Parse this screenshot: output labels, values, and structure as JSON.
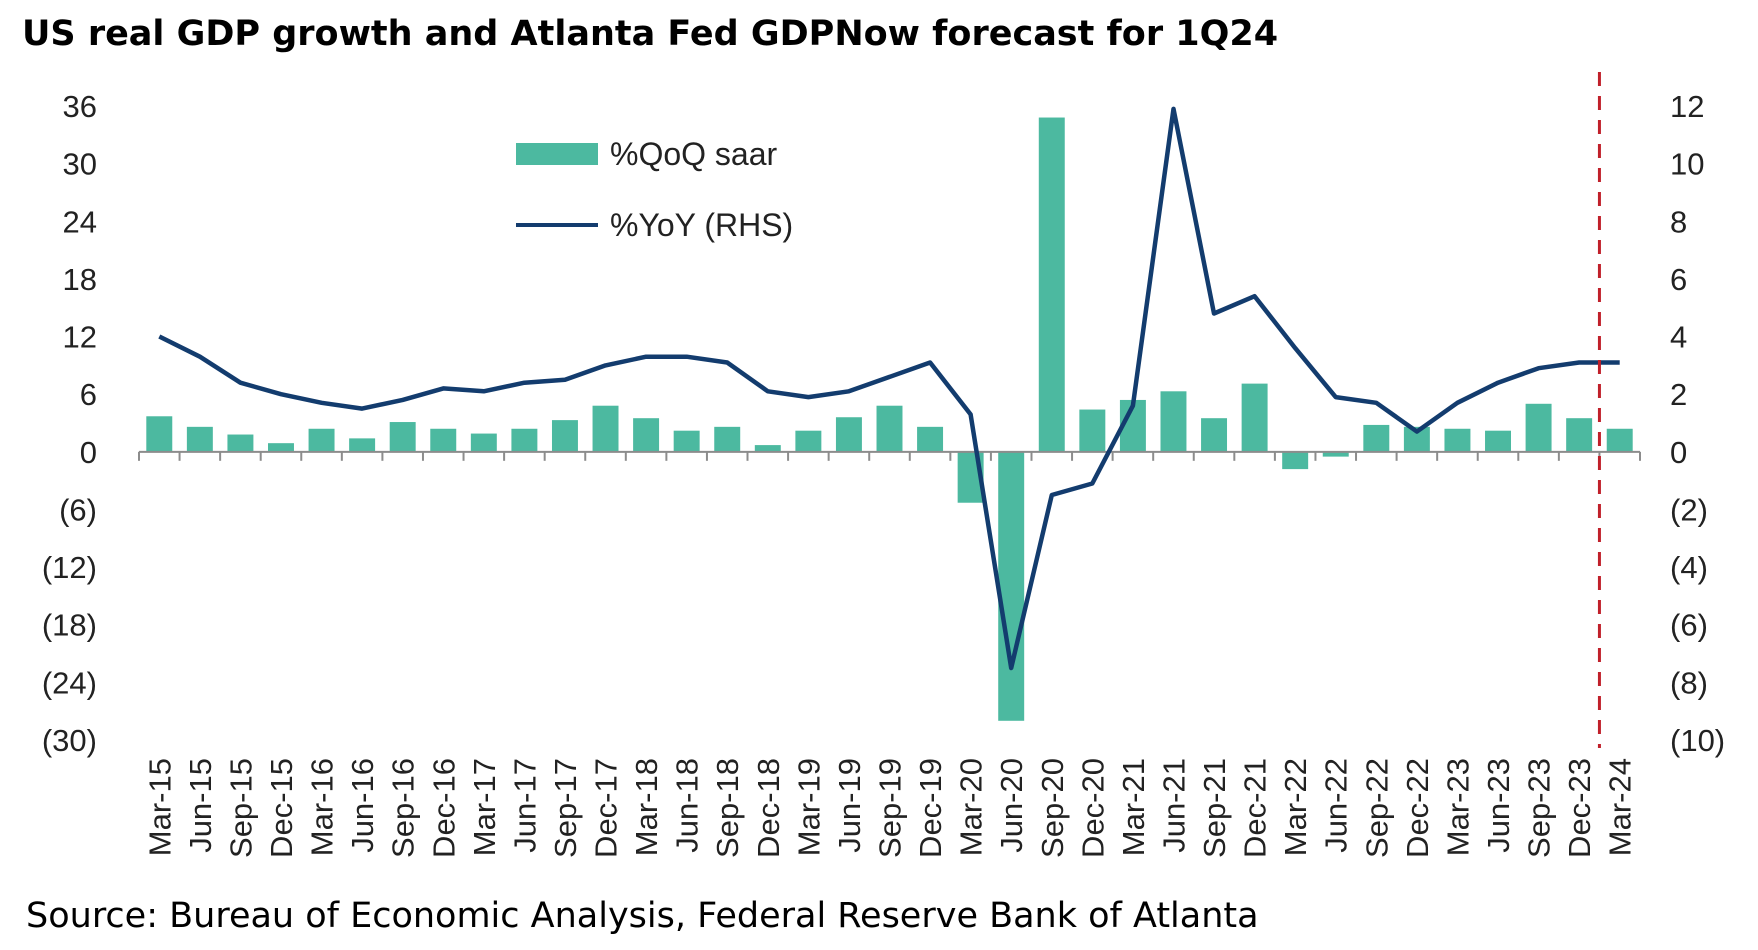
{
  "title": "US real GDP growth and Atlanta Fed GDPNow forecast for 1Q24",
  "source": "Source: Bureau of Economic Analysis, Federal Reserve Bank of Atlanta",
  "colors": {
    "bar": "#4cb9a0",
    "line": "#133c6e",
    "forecast_marker": "#c0202a",
    "axis": "#8c8c8c"
  },
  "chart_data": {
    "type": "bar",
    "categories": [
      "Mar-15",
      "Jun-15",
      "Sep-15",
      "Dec-15",
      "Mar-16",
      "Jun-16",
      "Sep-16",
      "Dec-16",
      "Mar-17",
      "Jun-17",
      "Sep-17",
      "Dec-17",
      "Mar-18",
      "Jun-18",
      "Sep-18",
      "Dec-18",
      "Mar-19",
      "Jun-19",
      "Sep-19",
      "Dec-19",
      "Mar-20",
      "Jun-20",
      "Sep-20",
      "Dec-20",
      "Mar-21",
      "Jun-21",
      "Sep-21",
      "Dec-21",
      "Mar-22",
      "Jun-22",
      "Sep-22",
      "Dec-22",
      "Mar-23",
      "Jun-23",
      "Sep-23",
      "Dec-23",
      "Mar-24"
    ],
    "series": [
      {
        "name": "%QoQ saar",
        "type": "bar",
        "axis": "left",
        "values": [
          3.7,
          2.6,
          1.8,
          0.9,
          2.4,
          1.4,
          3.1,
          2.4,
          1.9,
          2.4,
          3.3,
          4.8,
          3.5,
          2.2,
          2.6,
          0.7,
          2.2,
          3.6,
          4.8,
          2.6,
          -5.3,
          -28.0,
          34.8,
          4.4,
          5.4,
          6.3,
          3.5,
          7.1,
          -1.8,
          -0.5,
          2.8,
          2.6,
          2.4,
          2.2,
          5.0,
          3.5,
          2.4
        ]
      },
      {
        "name": "%YoY (RHS)",
        "type": "line",
        "axis": "right",
        "values": [
          4.0,
          3.3,
          2.4,
          2.0,
          1.7,
          1.5,
          1.8,
          2.2,
          2.1,
          2.4,
          2.5,
          3.0,
          3.3,
          3.3,
          3.1,
          2.1,
          1.9,
          2.1,
          2.6,
          3.1,
          1.3,
          -7.5,
          -1.5,
          -1.1,
          1.6,
          11.9,
          4.8,
          5.4,
          3.6,
          1.9,
          1.7,
          0.7,
          1.7,
          2.4,
          2.9,
          3.1,
          3.1
        ]
      }
    ],
    "left_axis": {
      "min": -30,
      "max": 36,
      "ticks": [
        "36",
        "30",
        "24",
        "18",
        "12",
        "6",
        "0",
        "(6)",
        "(12)",
        "(18)",
        "(24)",
        "(30)"
      ]
    },
    "right_axis": {
      "min": -10,
      "max": 12,
      "ticks": [
        "12",
        "10",
        "8",
        "6",
        "4",
        "2",
        "0",
        "(2)",
        "(4)",
        "(6)",
        "(8)",
        "(10)"
      ]
    },
    "legend": {
      "placement": "top-left"
    },
    "forecast_marker": {
      "between": [
        "Dec-23",
        "Mar-24"
      ],
      "style": "dashed"
    },
    "grid": false
  }
}
